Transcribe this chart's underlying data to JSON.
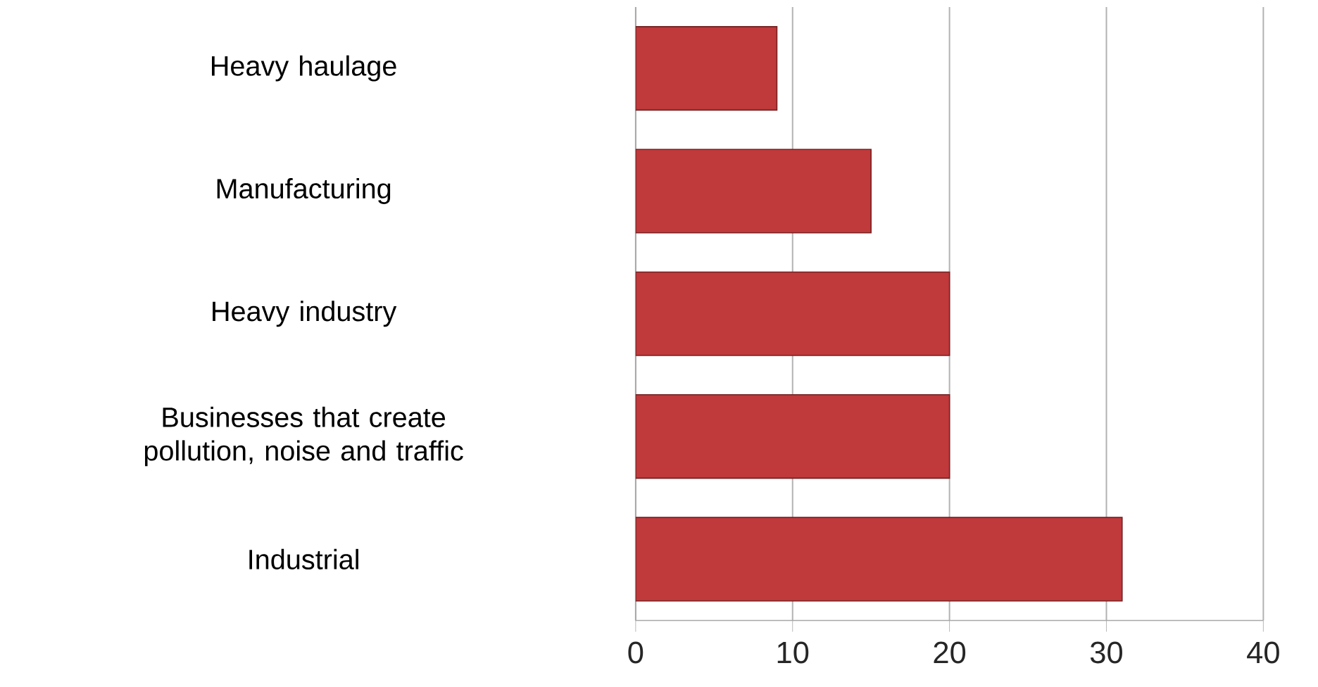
{
  "chart_data": {
    "type": "bar",
    "orientation": "horizontal",
    "categories": [
      "Heavy haulage",
      "Manufacturing",
      "Heavy industry",
      "Businesses that create pollution, noise and traffic",
      "Industrial"
    ],
    "values": [
      9,
      15,
      20,
      20,
      31
    ],
    "color": "#c0393b",
    "xlim": [
      0,
      40
    ],
    "xticks": [
      0,
      10,
      20,
      30,
      40
    ],
    "grid": "x"
  }
}
